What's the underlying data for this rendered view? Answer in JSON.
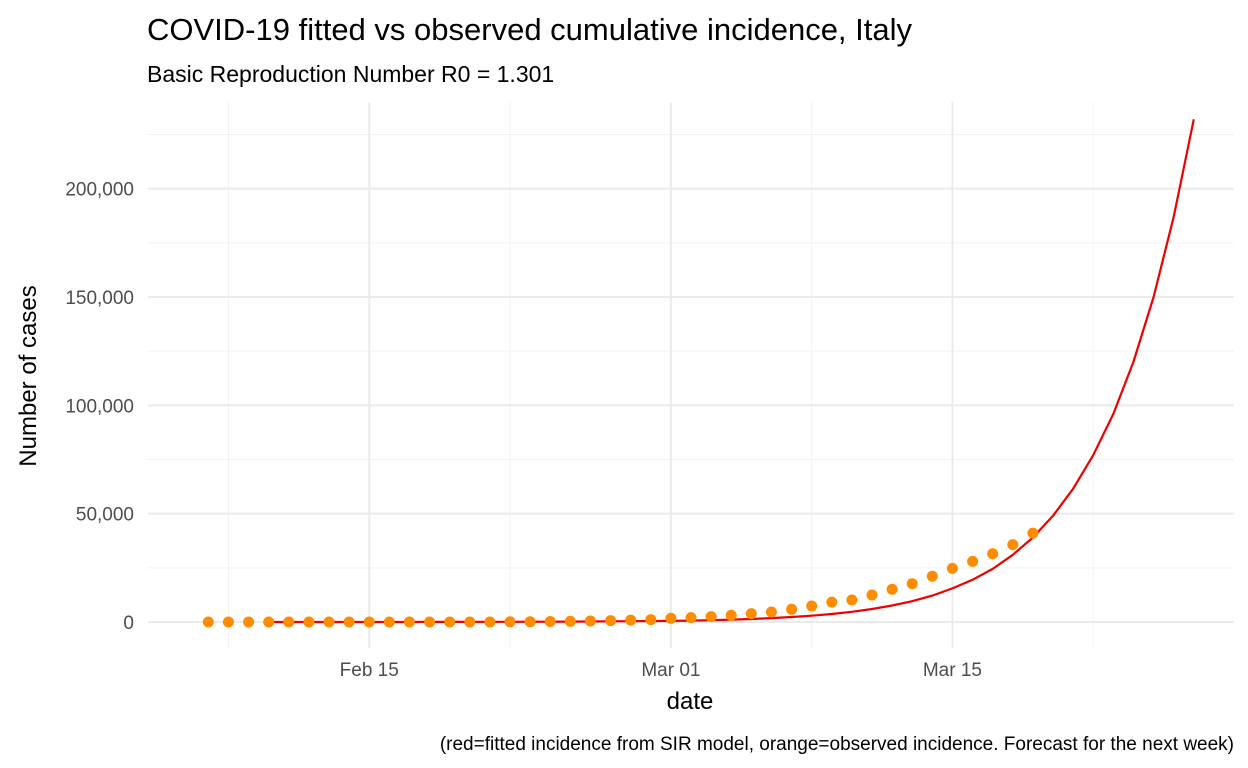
{
  "chart_data": {
    "type": "line+scatter",
    "title": "COVID-19 fitted vs observed cumulative incidence, Italy",
    "subtitle": "Basic Reproduction Number R0 = 1.301",
    "xlabel": "date",
    "ylabel": "Number of cases",
    "caption": "(red=fitted incidence from SIR model, orange=observed incidence. Forecast for the next week)",
    "xlim": [
      "2020-02-04",
      "2020-03-29"
    ],
    "ylim": [
      -12000,
      240000
    ],
    "x_ticks": [
      {
        "date": "2020-02-15",
        "label": "Feb 15"
      },
      {
        "date": "2020-03-01",
        "label": "Mar 01"
      },
      {
        "date": "2020-03-15",
        "label": "Mar 15"
      }
    ],
    "x_minor_ticks": [
      "2020-02-08",
      "2020-02-22",
      "2020-03-08",
      "2020-03-22"
    ],
    "y_ticks": [
      {
        "value": 0,
        "label": "0"
      },
      {
        "value": 50000,
        "label": "50,000"
      },
      {
        "value": 100000,
        "label": "100,000"
      },
      {
        "value": 150000,
        "label": "150,000"
      },
      {
        "value": 200000,
        "label": "200,000"
      }
    ],
    "y_minor_ticks": [
      25000,
      75000,
      125000,
      175000,
      225000
    ],
    "grid": true,
    "colors": {
      "fitted": "#ee0000",
      "observed": "#ff8c00"
    },
    "series": [
      {
        "kind": "line",
        "color": "#ee0000",
        "points": [
          [
            "2020-02-10",
            0
          ],
          [
            "2020-02-13",
            0
          ],
          [
            "2020-02-16",
            10
          ],
          [
            "2020-02-19",
            30
          ],
          [
            "2020-02-22",
            80
          ],
          [
            "2020-02-25",
            180
          ],
          [
            "2020-02-28",
            380
          ],
          [
            "2020-03-01",
            500
          ],
          [
            "2020-03-02",
            650
          ],
          [
            "2020-03-03",
            850
          ],
          [
            "2020-03-04",
            1100
          ],
          [
            "2020-03-05",
            1400
          ],
          [
            "2020-03-06",
            1800
          ],
          [
            "2020-03-07",
            2300
          ],
          [
            "2020-03-08",
            2900
          ],
          [
            "2020-03-09",
            3700
          ],
          [
            "2020-03-10",
            4700
          ],
          [
            "2020-03-11",
            6000
          ],
          [
            "2020-03-12",
            7600
          ],
          [
            "2020-03-13",
            9600
          ],
          [
            "2020-03-14",
            12200
          ],
          [
            "2020-03-15",
            15500
          ],
          [
            "2020-03-16",
            19500
          ],
          [
            "2020-03-17",
            24500
          ],
          [
            "2020-03-18",
            31000
          ],
          [
            "2020-03-19",
            39000
          ],
          [
            "2020-03-20",
            49000
          ],
          [
            "2020-03-21",
            61500
          ],
          [
            "2020-03-22",
            77000
          ],
          [
            "2020-03-23",
            96000
          ],
          [
            "2020-03-24",
            120000
          ],
          [
            "2020-03-25",
            150000
          ],
          [
            "2020-03-26",
            187000
          ],
          [
            "2020-03-27",
            232000
          ]
        ]
      },
      {
        "kind": "points",
        "color": "#ff8c00",
        "points": [
          [
            "2020-02-07",
            3
          ],
          [
            "2020-02-08",
            3
          ],
          [
            "2020-02-09",
            3
          ],
          [
            "2020-02-10",
            3
          ],
          [
            "2020-02-11",
            3
          ],
          [
            "2020-02-12",
            3
          ],
          [
            "2020-02-13",
            3
          ],
          [
            "2020-02-14",
            3
          ],
          [
            "2020-02-15",
            3
          ],
          [
            "2020-02-16",
            3
          ],
          [
            "2020-02-17",
            3
          ],
          [
            "2020-02-18",
            3
          ],
          [
            "2020-02-19",
            3
          ],
          [
            "2020-02-20",
            3
          ],
          [
            "2020-02-21",
            20
          ],
          [
            "2020-02-22",
            79
          ],
          [
            "2020-02-23",
            157
          ],
          [
            "2020-02-24",
            229
          ],
          [
            "2020-02-25",
            323
          ],
          [
            "2020-02-26",
            470
          ],
          [
            "2020-02-27",
            655
          ],
          [
            "2020-02-28",
            889
          ],
          [
            "2020-02-29",
            1128
          ],
          [
            "2020-03-01",
            1694
          ],
          [
            "2020-03-02",
            2036
          ],
          [
            "2020-03-03",
            2502
          ],
          [
            "2020-03-04",
            3089
          ],
          [
            "2020-03-05",
            3858
          ],
          [
            "2020-03-06",
            4636
          ],
          [
            "2020-03-07",
            5883
          ],
          [
            "2020-03-08",
            7375
          ],
          [
            "2020-03-09",
            9172
          ],
          [
            "2020-03-10",
            10149
          ],
          [
            "2020-03-11",
            12462
          ],
          [
            "2020-03-12",
            15113
          ],
          [
            "2020-03-13",
            17660
          ],
          [
            "2020-03-14",
            21157
          ],
          [
            "2020-03-15",
            24747
          ],
          [
            "2020-03-16",
            27980
          ],
          [
            "2020-03-17",
            31506
          ],
          [
            "2020-03-18",
            35713
          ],
          [
            "2020-03-19",
            41035
          ]
        ]
      }
    ]
  }
}
